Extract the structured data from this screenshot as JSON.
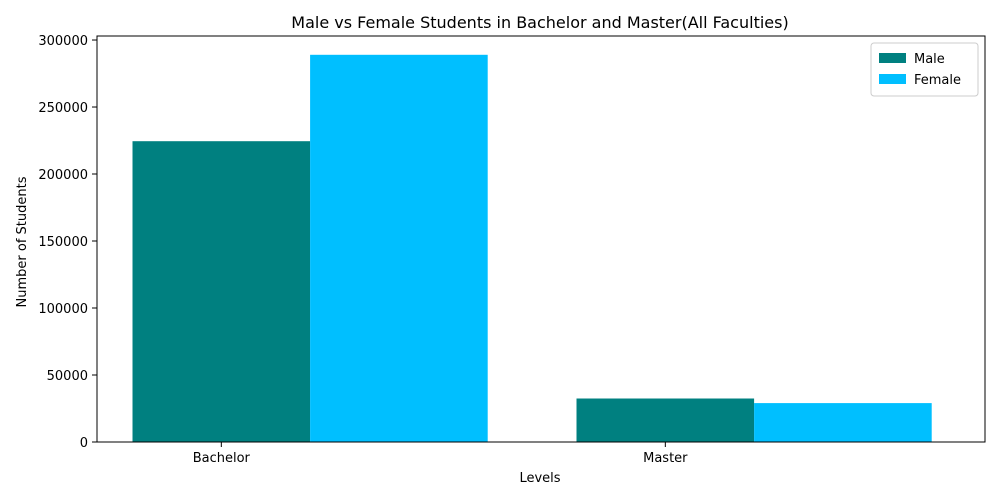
{
  "chart_data": {
    "type": "bar",
    "title": "Male vs Female Students in Bachelor and Master(All Faculties)",
    "xlabel": "Levels",
    "ylabel": "Number of Students",
    "categories": [
      "Bachelor",
      "Master"
    ],
    "series": [
      {
        "name": "Male",
        "values": [
          224500,
          32500
        ],
        "color": "#008080"
      },
      {
        "name": "Female",
        "values": [
          289000,
          29000
        ],
        "color": "#00bfff"
      }
    ],
    "ylim": [
      0,
      303000
    ],
    "yticks": [
      0,
      50000,
      100000,
      150000,
      200000,
      250000,
      300000
    ],
    "grid": false,
    "legend_position": "top-right"
  }
}
